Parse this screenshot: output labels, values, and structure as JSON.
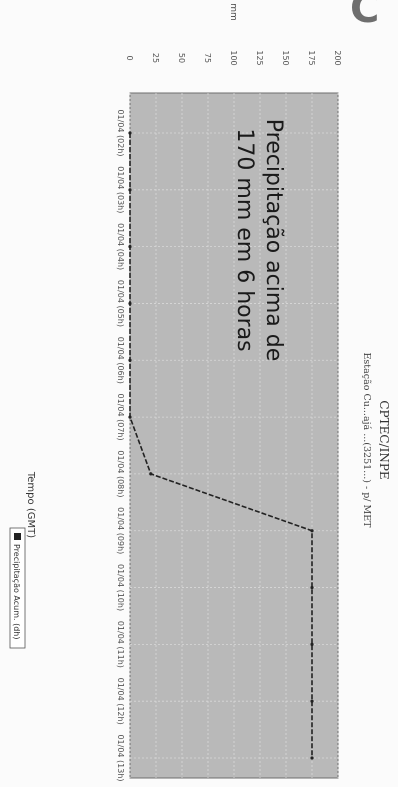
{
  "page": {
    "corner_glyph": "C"
  },
  "chart_data": {
    "type": "line",
    "title": "CPTEC/INPE",
    "subtitle": "Estação Cu...ajá ...(3251...) - p/ MET",
    "ylabel": "mm",
    "xlabel": "Tempo (GMT)",
    "legend": {
      "label": "Precipitação Acum. (dh)",
      "placement": "bottom-right"
    },
    "annotation": [
      "Precipitação acima de",
      "170 mm em 6 horas"
    ],
    "grid": true,
    "ylim": [
      0,
      200
    ],
    "yticks": [
      {
        "value": 0,
        "label": "0"
      },
      {
        "value": 25,
        "label": "25"
      },
      {
        "value": 50,
        "label": "50"
      },
      {
        "value": 75,
        "label": "75"
      },
      {
        "value": 100,
        "label": "100"
      },
      {
        "value": 125,
        "label": "125"
      },
      {
        "value": 150,
        "label": "150"
      },
      {
        "value": 175,
        "label": "175"
      },
      {
        "value": 200,
        "label": "200"
      }
    ],
    "categories": [
      "01/04 (02h)",
      "01/04 (03h)",
      "01/04 (04h)",
      "01/04 (05h)",
      "01/04 (06h)",
      "01/04 (07h)",
      "01/04 (08h)",
      "01/04 (09h)",
      "01/04 (10h)",
      "01/04 (11h)",
      "01/04 (12h)",
      "01/04 (13h)"
    ],
    "series": [
      {
        "name": "Precipitação Acum. (dh)",
        "color": "#222222",
        "values": [
          0,
          0,
          0,
          0,
          0,
          0,
          20,
          175,
          175,
          175,
          175,
          175
        ]
      }
    ]
  }
}
